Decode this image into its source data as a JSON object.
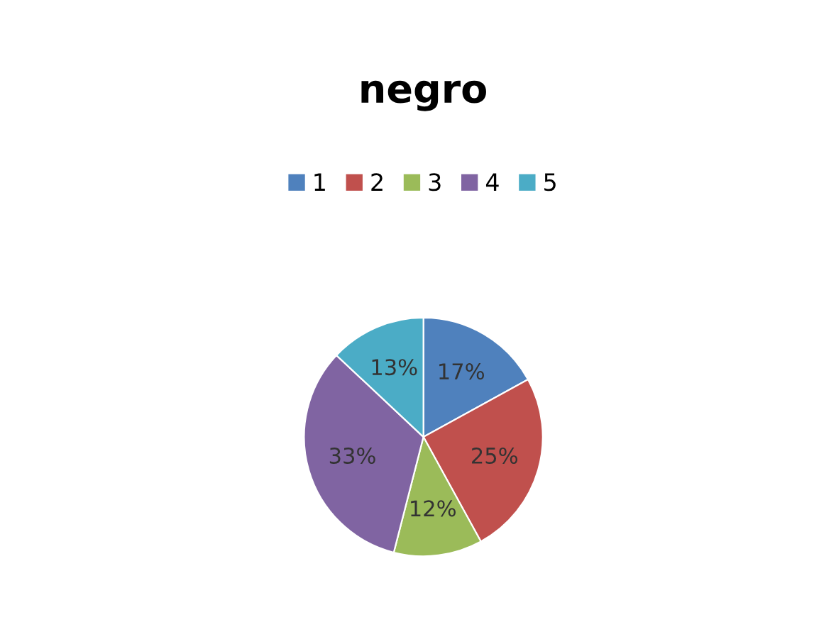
{
  "chart_data": {
    "type": "pie",
    "title": "negro",
    "categories": [
      "1",
      "2",
      "3",
      "4",
      "5"
    ],
    "values": [
      17,
      25,
      12,
      33,
      13
    ],
    "value_labels": [
      "17%",
      "25%",
      "12%",
      "33%",
      "13%"
    ],
    "colors": [
      "#4f81bd",
      "#c0504d",
      "#9bbb59",
      "#8064a2",
      "#4bacc6"
    ],
    "legend": "top"
  }
}
